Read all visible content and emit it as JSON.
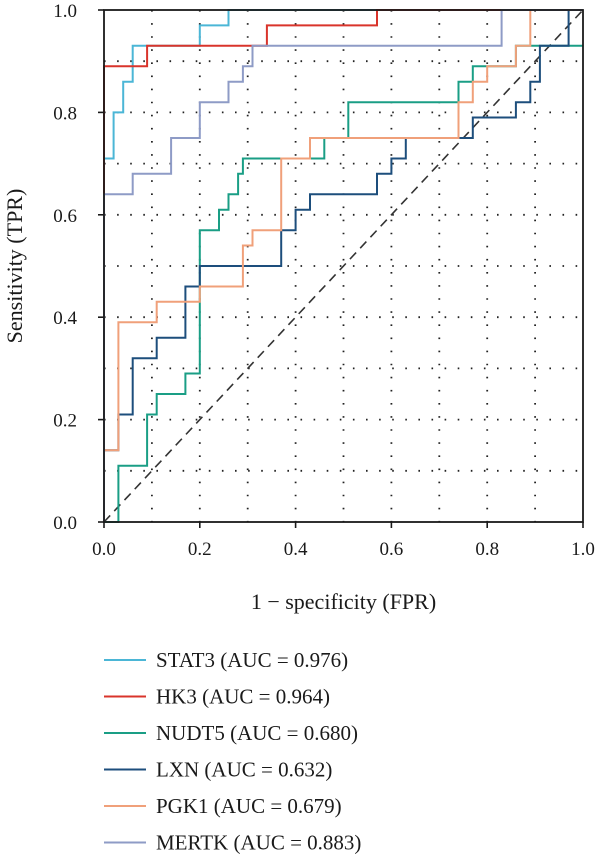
{
  "chart_data": {
    "type": "line",
    "title": "",
    "xlabel": "1 − specificity (FPR)",
    "ylabel": "Sensitivity (TPR)",
    "xlim": [
      0,
      1
    ],
    "ylim": [
      0,
      1
    ],
    "xticks": [
      "0.0",
      "0.2",
      "0.4",
      "0.6",
      "0.8",
      "1.0"
    ],
    "yticks": [
      "0.0",
      "0.2",
      "0.4",
      "0.6",
      "0.8",
      "1.0"
    ],
    "grid": "dotted",
    "legend_position": "bottom",
    "diagonal_reference": true,
    "series": [
      {
        "name": "STAT3 (AUC = 0.976)",
        "color": "#4bb6d6",
        "x": [
          0,
          0,
          0.02,
          0.02,
          0.04,
          0.04,
          0.06,
          0.06,
          0.2,
          0.2,
          0.26,
          0.26,
          0.57,
          0.57,
          1.0
        ],
        "y": [
          0,
          0.71,
          0.71,
          0.8,
          0.8,
          0.86,
          0.86,
          0.93,
          0.93,
          0.97,
          0.97,
          1.0,
          1.0,
          1.0,
          1.0
        ]
      },
      {
        "name": "HK3 (AUC = 0.964)",
        "color": "#d9342b",
        "x": [
          0,
          0,
          0.06,
          0.06,
          0.09,
          0.09,
          0.34,
          0.34,
          0.57,
          0.57,
          0.83,
          1.0
        ],
        "y": [
          0,
          0.89,
          0.89,
          0.89,
          0.89,
          0.93,
          0.93,
          0.97,
          0.97,
          1.0,
          1.0,
          1.0
        ]
      },
      {
        "name": "NUDT5 (AUC = 0.680)",
        "color": "#1a9e85",
        "x": [
          0,
          0.03,
          0.03,
          0.09,
          0.09,
          0.11,
          0.11,
          0.17,
          0.17,
          0.2,
          0.2,
          0.24,
          0.24,
          0.26,
          0.26,
          0.28,
          0.28,
          0.29,
          0.29,
          0.31,
          0.31,
          0.46,
          0.46,
          0.51,
          0.51,
          0.74,
          0.74,
          0.77,
          0.77,
          0.86,
          0.86,
          1.0
        ],
        "y": [
          0,
          0,
          0.11,
          0.11,
          0.21,
          0.21,
          0.25,
          0.25,
          0.29,
          0.29,
          0.57,
          0.57,
          0.61,
          0.61,
          0.64,
          0.64,
          0.68,
          0.68,
          0.71,
          0.71,
          0.71,
          0.71,
          0.75,
          0.75,
          0.82,
          0.82,
          0.86,
          0.86,
          0.89,
          0.89,
          0.93,
          0.93
        ]
      },
      {
        "name": "LXN (AUC = 0.632)",
        "color": "#1d4e7c",
        "x": [
          0,
          0,
          0.03,
          0.03,
          0.06,
          0.06,
          0.11,
          0.11,
          0.17,
          0.17,
          0.2,
          0.2,
          0.37,
          0.37,
          0.4,
          0.4,
          0.43,
          0.43,
          0.57,
          0.57,
          0.6,
          0.6,
          0.63,
          0.63,
          0.66,
          0.66,
          0.71,
          0.71,
          0.77,
          0.77,
          0.86,
          0.86,
          0.89,
          0.89,
          0.91,
          0.91,
          0.97,
          0.97,
          1.0
        ],
        "y": [
          0,
          0.14,
          0.14,
          0.21,
          0.21,
          0.32,
          0.32,
          0.36,
          0.36,
          0.46,
          0.46,
          0.5,
          0.5,
          0.57,
          0.57,
          0.61,
          0.61,
          0.64,
          0.64,
          0.68,
          0.68,
          0.71,
          0.71,
          0.75,
          0.75,
          0.75,
          0.75,
          0.75,
          0.75,
          0.79,
          0.79,
          0.82,
          0.82,
          0.86,
          0.86,
          0.93,
          0.93,
          1.0,
          1.0
        ]
      },
      {
        "name": "PGK1 (AUC = 0.679)",
        "color": "#f0a07a",
        "x": [
          0,
          0,
          0.03,
          0.03,
          0.11,
          0.11,
          0.2,
          0.2,
          0.29,
          0.29,
          0.31,
          0.31,
          0.37,
          0.37,
          0.43,
          0.43,
          0.46,
          0.46,
          0.74,
          0.74,
          0.77,
          0.77,
          0.8,
          0.8,
          0.86,
          0.86,
          0.89,
          0.89,
          0.91,
          1.0
        ],
        "y": [
          0,
          0.14,
          0.14,
          0.39,
          0.39,
          0.43,
          0.43,
          0.46,
          0.46,
          0.54,
          0.54,
          0.57,
          0.57,
          0.71,
          0.71,
          0.75,
          0.75,
          0.75,
          0.75,
          0.82,
          0.82,
          0.86,
          0.86,
          0.89,
          0.89,
          0.93,
          0.93,
          1.0,
          1.0,
          1.0
        ]
      },
      {
        "name": "MERTK (AUC = 0.883)",
        "color": "#8e9bc6",
        "x": [
          0,
          0,
          0.06,
          0.06,
          0.14,
          0.14,
          0.2,
          0.2,
          0.26,
          0.26,
          0.29,
          0.29,
          0.31,
          0.31,
          0.34,
          0.34,
          0.83,
          0.83,
          1.0
        ],
        "y": [
          0,
          0.64,
          0.64,
          0.68,
          0.68,
          0.75,
          0.75,
          0.82,
          0.82,
          0.86,
          0.86,
          0.89,
          0.89,
          0.93,
          0.93,
          0.93,
          0.93,
          1.0,
          1.0
        ]
      }
    ]
  }
}
